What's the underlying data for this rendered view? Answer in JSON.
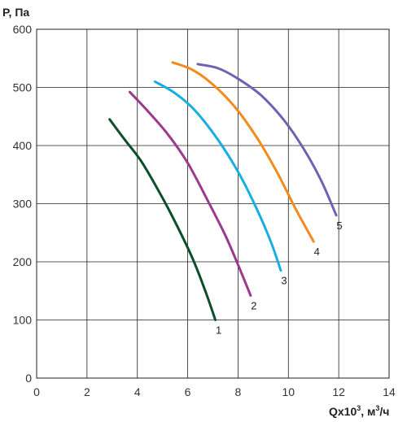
{
  "chart_data": {
    "type": "line",
    "ylabel": "P, Па",
    "xlabel_main": "Qx10",
    "xlabel_exp": "3",
    "xlabel_sep": ", м",
    "xlabel_unit_exp": "3",
    "xlabel_unit_tail": "/ч",
    "xlim": [
      0,
      14
    ],
    "ylim": [
      0,
      600
    ],
    "x_ticks": [
      0,
      2,
      4,
      6,
      8,
      10,
      12,
      14
    ],
    "y_ticks": [
      0,
      100,
      200,
      300,
      400,
      500,
      600
    ],
    "grid": true,
    "series": [
      {
        "name": "1",
        "color": "#0b4f2a",
        "points": [
          [
            2.9,
            445
          ],
          [
            3.5,
            410
          ],
          [
            4.2,
            370
          ],
          [
            5.0,
            310
          ],
          [
            5.6,
            260
          ],
          [
            6.2,
            205
          ],
          [
            6.7,
            150
          ],
          [
            7.1,
            100
          ]
        ]
      },
      {
        "name": "2",
        "color": "#9b3a8c",
        "points": [
          [
            3.7,
            492
          ],
          [
            4.4,
            460
          ],
          [
            5.2,
            420
          ],
          [
            6.0,
            370
          ],
          [
            6.8,
            305
          ],
          [
            7.5,
            245
          ],
          [
            8.0,
            195
          ],
          [
            8.5,
            142
          ]
        ]
      },
      {
        "name": "3",
        "color": "#17aee3",
        "points": [
          [
            4.7,
            510
          ],
          [
            5.5,
            490
          ],
          [
            6.3,
            460
          ],
          [
            7.2,
            410
          ],
          [
            8.0,
            355
          ],
          [
            8.7,
            295
          ],
          [
            9.3,
            235
          ],
          [
            9.7,
            185
          ]
        ]
      },
      {
        "name": "4",
        "color": "#f28a1e",
        "points": [
          [
            5.4,
            543
          ],
          [
            6.2,
            530
          ],
          [
            7.0,
            505
          ],
          [
            7.9,
            465
          ],
          [
            8.8,
            410
          ],
          [
            9.6,
            350
          ],
          [
            10.3,
            290
          ],
          [
            11.0,
            235
          ]
        ]
      },
      {
        "name": "5",
        "color": "#6d63b3",
        "points": [
          [
            6.4,
            540
          ],
          [
            7.2,
            533
          ],
          [
            8.0,
            515
          ],
          [
            8.9,
            487
          ],
          [
            9.8,
            445
          ],
          [
            10.6,
            395
          ],
          [
            11.3,
            340
          ],
          [
            11.9,
            280
          ]
        ]
      }
    ]
  }
}
